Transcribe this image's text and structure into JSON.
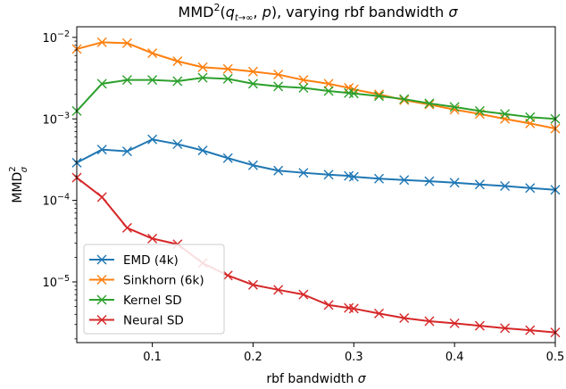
{
  "chart_data": {
    "type": "line",
    "title_parts": {
      "pre": "MMD",
      "sup": "2",
      "paren_open": "(",
      "q": "q",
      "q_sub": "t→∞",
      "after_q": ", ",
      "p": "p",
      "paren_close": ")",
      "mid": ", varying rbf bandwidth ",
      "sigma": "σ"
    },
    "xlabel_parts": {
      "text": "rbf bandwidth ",
      "sigma": "σ"
    },
    "ylabel_parts": {
      "base": "MMD",
      "sup": "2",
      "sub": "σ"
    },
    "xlim": [
      0.025,
      0.5
    ],
    "ylim": [
      1.8e-06,
      0.0135
    ],
    "yscale": "log",
    "x_ticks": [
      {
        "value": 0.1,
        "label": "0.1"
      },
      {
        "value": 0.2,
        "label": "0.2"
      },
      {
        "value": 0.3,
        "label": "0.3"
      },
      {
        "value": 0.4,
        "label": "0.4"
      },
      {
        "value": 0.5,
        "label": "0.5"
      }
    ],
    "y_ticks": [
      {
        "value": 1e-05,
        "base": "10",
        "exp": "−5"
      },
      {
        "value": 0.0001,
        "base": "10",
        "exp": "−4"
      },
      {
        "value": 0.001,
        "base": "10",
        "exp": "−3"
      },
      {
        "value": 0.01,
        "base": "10",
        "exp": "−2"
      }
    ],
    "grid": false,
    "legend_position": "lower-left",
    "x": [
      0.025,
      0.05,
      0.075,
      0.1,
      0.125,
      0.15,
      0.175,
      0.2,
      0.225,
      0.25,
      0.275,
      0.3,
      0.325,
      0.35,
      0.375,
      0.4,
      0.425,
      0.45,
      0.475,
      0.5
    ],
    "series": [
      {
        "name": "EMD (4k)",
        "color": "#1f77b4",
        "values": [
          0.00029,
          0.00042,
          0.0004,
          0.00056,
          0.00049,
          0.00041,
          0.00033,
          0.00027,
          0.000232,
          0.000218,
          0.000207,
          0.000195,
          0.000185,
          0.000178,
          0.000172,
          0.000165,
          0.000157,
          0.00015,
          0.000142,
          0.000135
        ],
        "extra_points": [
          {
            "x": 0.295,
            "y": 0.0002
          }
        ]
      },
      {
        "name": "Sinkhorn (6k)",
        "color": "#ff7f0e",
        "values": [
          0.0072,
          0.0087,
          0.0085,
          0.0064,
          0.0051,
          0.0043,
          0.0041,
          0.0038,
          0.0035,
          0.003,
          0.0027,
          0.0023,
          0.002,
          0.0017,
          0.0015,
          0.0013,
          0.00115,
          0.001,
          0.00088,
          0.00076
        ],
        "extra_points": [
          {
            "x": 0.295,
            "y": 0.0024
          }
        ]
      },
      {
        "name": "Kernel SD",
        "color": "#2ca02c",
        "values": [
          0.00125,
          0.0027,
          0.003,
          0.003,
          0.0029,
          0.0032,
          0.0031,
          0.0027,
          0.0025,
          0.0024,
          0.0022,
          0.00205,
          0.0019,
          0.00175,
          0.00155,
          0.0014,
          0.00125,
          0.00115,
          0.00105,
          0.001
        ],
        "extra_points": [
          {
            "x": 0.295,
            "y": 0.00208
          }
        ]
      },
      {
        "name": "Neural SD",
        "color": "#d62728",
        "values": [
          0.00019,
          0.00011,
          4.6e-05,
          3.4e-05,
          2.9e-05,
          1.7e-05,
          1.2e-05,
          9.2e-06,
          8e-06,
          7e-06,
          5.2e-06,
          4.7e-06,
          4.1e-06,
          3.6e-06,
          3.3e-06,
          3.1e-06,
          2.9e-06,
          2.7e-06,
          2.55e-06,
          2.4e-06
        ],
        "extra_points": [
          {
            "x": 0.295,
            "y": 4.8e-06
          }
        ]
      }
    ]
  }
}
